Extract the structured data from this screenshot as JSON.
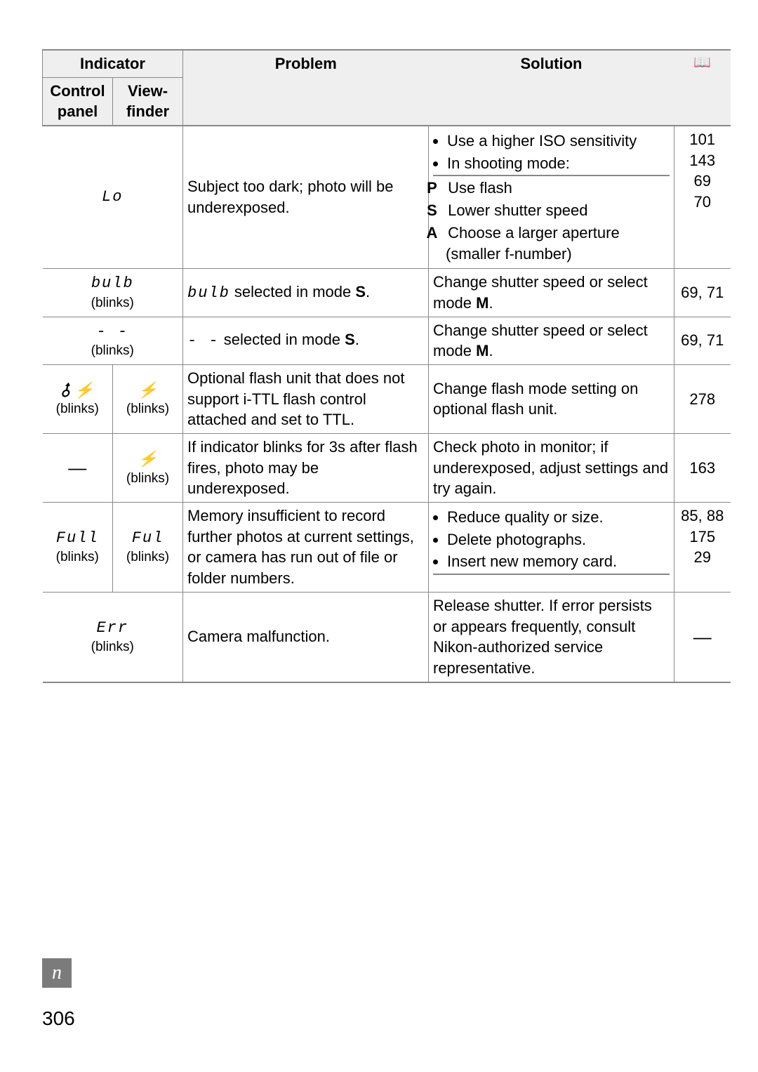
{
  "page_number": "306",
  "book_icon_glyph": "📖",
  "header": {
    "indicator": "Indicator",
    "control_panel": "Control panel",
    "view_finder": "View-finder",
    "problem": "Problem",
    "solution": "Solution"
  },
  "rows": [
    {
      "ind_merged": true,
      "ind_lcd": "Lo",
      "ind_blinks": "",
      "problem": "Subject too dark; photo will be underexposed.",
      "solution_bullets": [
        "Use a higher ISO sensitivity",
        "In shooting mode:"
      ],
      "solution_subs": [
        {
          "k": "P",
          "t": "Use flash"
        },
        {
          "k": "S",
          "t": "Lower shutter speed"
        },
        {
          "k": "A",
          "t": "Choose a larger aperture (smaller f-number)"
        }
      ],
      "ref_lines": [
        "101",
        "",
        "143",
        "69",
        "70"
      ]
    },
    {
      "ind_merged": true,
      "ind_lcd": "bulb",
      "ind_blinks": "(blinks)",
      "problem_lcd_prefix": "bulb",
      "problem_rest": " selected in mode ",
      "problem_bold_trail": "S",
      "solution_plain": "Change shutter speed or select mode ",
      "solution_bold_trail": "M",
      "ref": "69, 71"
    },
    {
      "ind_merged": true,
      "ind_lcd": "- -",
      "ind_blinks": "(blinks)",
      "problem_lcd_prefix": "- -",
      "problem_rest": " selected in mode ",
      "problem_bold_trail": "S",
      "solution_plain": "Change shutter speed or select mode ",
      "solution_bold_trail": "M",
      "ref": "69, 71"
    },
    {
      "ind_split": true,
      "cp_glyph": "⯽ ⚡",
      "cp_blinks": "(blinks)",
      "vf_glyph": "⚡",
      "vf_blinks": "(blinks)",
      "problem": "Optional flash unit that does not support i-TTL flash control attached and set to TTL.",
      "solution_plain": "Change flash mode setting on optional flash unit.",
      "ref": "278"
    },
    {
      "ind_split": true,
      "cp_text": "—",
      "vf_glyph": "⚡",
      "vf_blinks": "(blinks)",
      "problem": "If indicator blinks for 3s after flash fires, photo may be underexposed.",
      "solution_plain": "Check photo in monitor; if underexposed, adjust settings and try again.",
      "ref": "163"
    },
    {
      "ind_split": true,
      "cp_lcd": "Full",
      "cp_blinks": "(blinks)",
      "vf_lcd": "Ful",
      "vf_blinks": "(blinks)",
      "problem": "Memory insufficient to record further photos at current settings, or camera has run out of file or folder numbers.",
      "solution_bullets": [
        "Reduce quality or size.",
        "Delete photographs.",
        "Insert new memory card."
      ],
      "ref_lines": [
        "85, 88",
        "175",
        "29"
      ]
    },
    {
      "ind_merged": true,
      "ind_lcd": "Err",
      "ind_blinks": "(blinks)",
      "problem": "Camera malfunction.",
      "solution_plain": "Release shutter. If error persists or appears frequently, consult Nikon-authorized service representative.",
      "ref": "—"
    }
  ]
}
